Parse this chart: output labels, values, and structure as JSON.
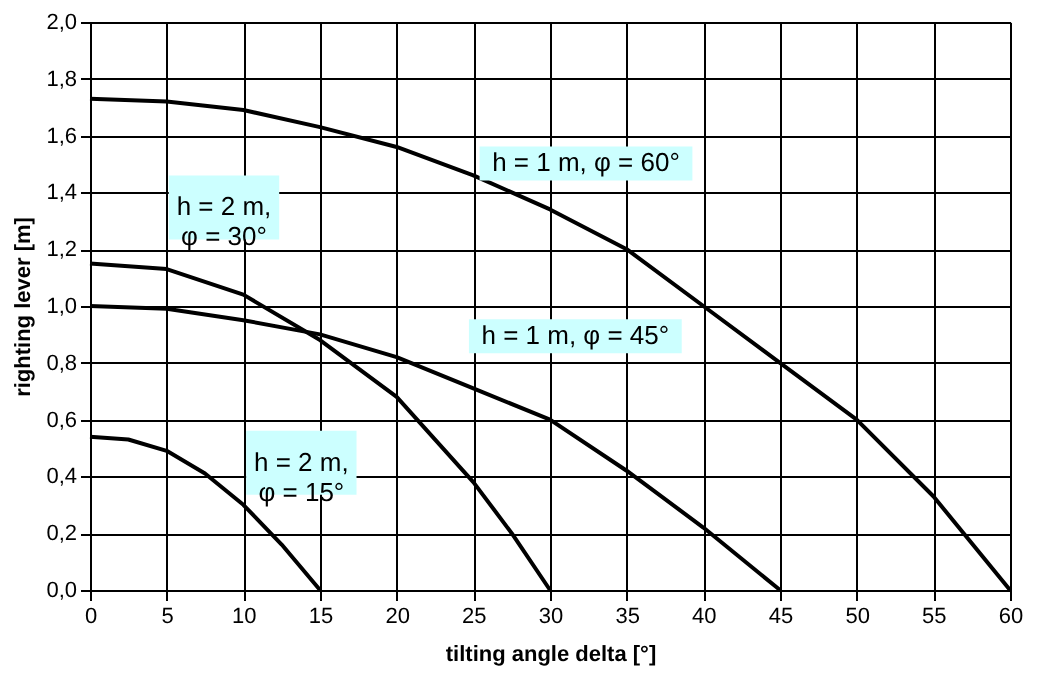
{
  "chart_data": {
    "type": "line",
    "xlabel": "tilting angle delta  [°]",
    "ylabel": "righting lever [m]",
    "xlim": [
      0,
      60
    ],
    "xticks": [
      0,
      5,
      10,
      15,
      20,
      25,
      30,
      35,
      40,
      45,
      50,
      55,
      60
    ],
    "ylim": [
      0,
      2.0
    ],
    "yticks": [
      {
        "value": 0,
        "label": "0,0"
      },
      {
        "value": 0.2,
        "label": "0,2"
      },
      {
        "value": 0.4,
        "label": "0,4"
      },
      {
        "value": 0.6,
        "label": "0,6"
      },
      {
        "value": 0.8,
        "label": "0,8"
      },
      {
        "value": 1.0,
        "label": "1,0"
      },
      {
        "value": 1.2,
        "label": "1,2"
      },
      {
        "value": 1.4,
        "label": "1,4"
      },
      {
        "value": 1.6,
        "label": "1,6"
      },
      {
        "value": 1.8,
        "label": "1,8"
      },
      {
        "value": 2.0,
        "label": "2,0"
      }
    ],
    "grid": true,
    "marker": "none",
    "line_style": "solid",
    "series": [
      {
        "name": "h = 1 m, φ = 60°",
        "color": "#000000",
        "x": [
          0,
          5,
          10,
          15,
          20,
          25,
          30,
          35,
          40,
          45,
          50,
          55,
          60
        ],
        "values": [
          1.73,
          1.72,
          1.69,
          1.63,
          1.56,
          1.46,
          1.34,
          1.2,
          1.0,
          0.8,
          0.6,
          0.33,
          0
        ]
      },
      {
        "name": "h = 1 m, φ = 45°",
        "color": "#000000",
        "x": [
          0,
          5,
          10,
          15,
          20,
          25,
          30,
          35,
          40,
          45
        ],
        "values": [
          1.0,
          0.99,
          0.95,
          0.9,
          0.82,
          0.71,
          0.6,
          0.42,
          0.22,
          0
        ]
      },
      {
        "name": "h = 2 m,\nφ = 30°",
        "color": "#000000",
        "x": [
          0,
          5,
          10,
          15,
          20,
          25,
          27.5,
          30
        ],
        "values": [
          1.15,
          1.13,
          1.04,
          0.88,
          0.68,
          0.38,
          0.2,
          0
        ]
      },
      {
        "name": "h = 2 m,\nφ = 15°",
        "color": "#000000",
        "x": [
          0,
          2.5,
          5,
          7.5,
          10,
          12.5,
          15
        ],
        "values": [
          0.54,
          0.53,
          0.49,
          0.41,
          0.3,
          0.16,
          0
        ]
      }
    ]
  }
}
